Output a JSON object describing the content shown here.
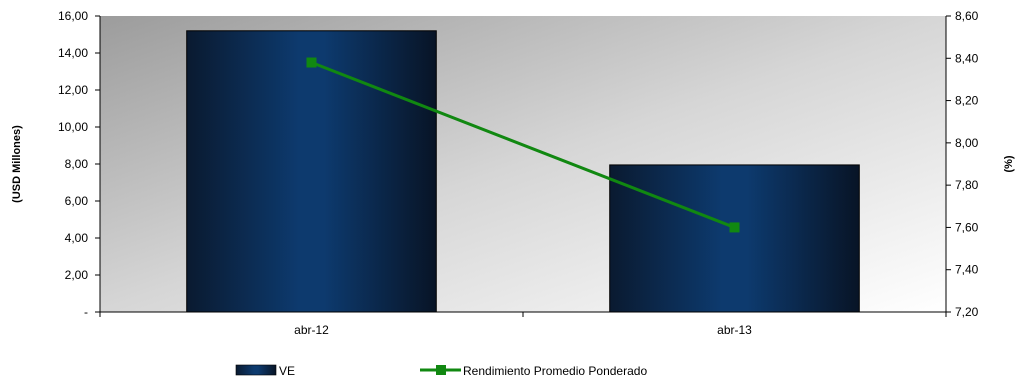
{
  "chart_data": {
    "type": "bar",
    "categories": [
      "abr-12",
      "abr-13"
    ],
    "series": [
      {
        "name": "VE",
        "type": "bar",
        "axis": "left",
        "values": [
          15.2,
          7.95
        ],
        "color": "#0b2a4e"
      },
      {
        "name": "Rendimiento Promedio Ponderado",
        "type": "line",
        "axis": "right",
        "values": [
          8.38,
          7.6
        ],
        "color": "#118811"
      }
    ],
    "ylabel": "(USD Millones)",
    "y2label": "(%)",
    "ylim": [
      0,
      16
    ],
    "y2lim": [
      7.2,
      8.6
    ],
    "yticks": [
      "-",
      "2,00",
      "4,00",
      "6,00",
      "8,00",
      "10,00",
      "12,00",
      "14,00",
      "16,00"
    ],
    "y2ticks": [
      "7,20",
      "7,40",
      "7,60",
      "7,80",
      "8,00",
      "8,20",
      "8,40",
      "8,60"
    ],
    "legend_position": "bottom",
    "grid": false
  }
}
